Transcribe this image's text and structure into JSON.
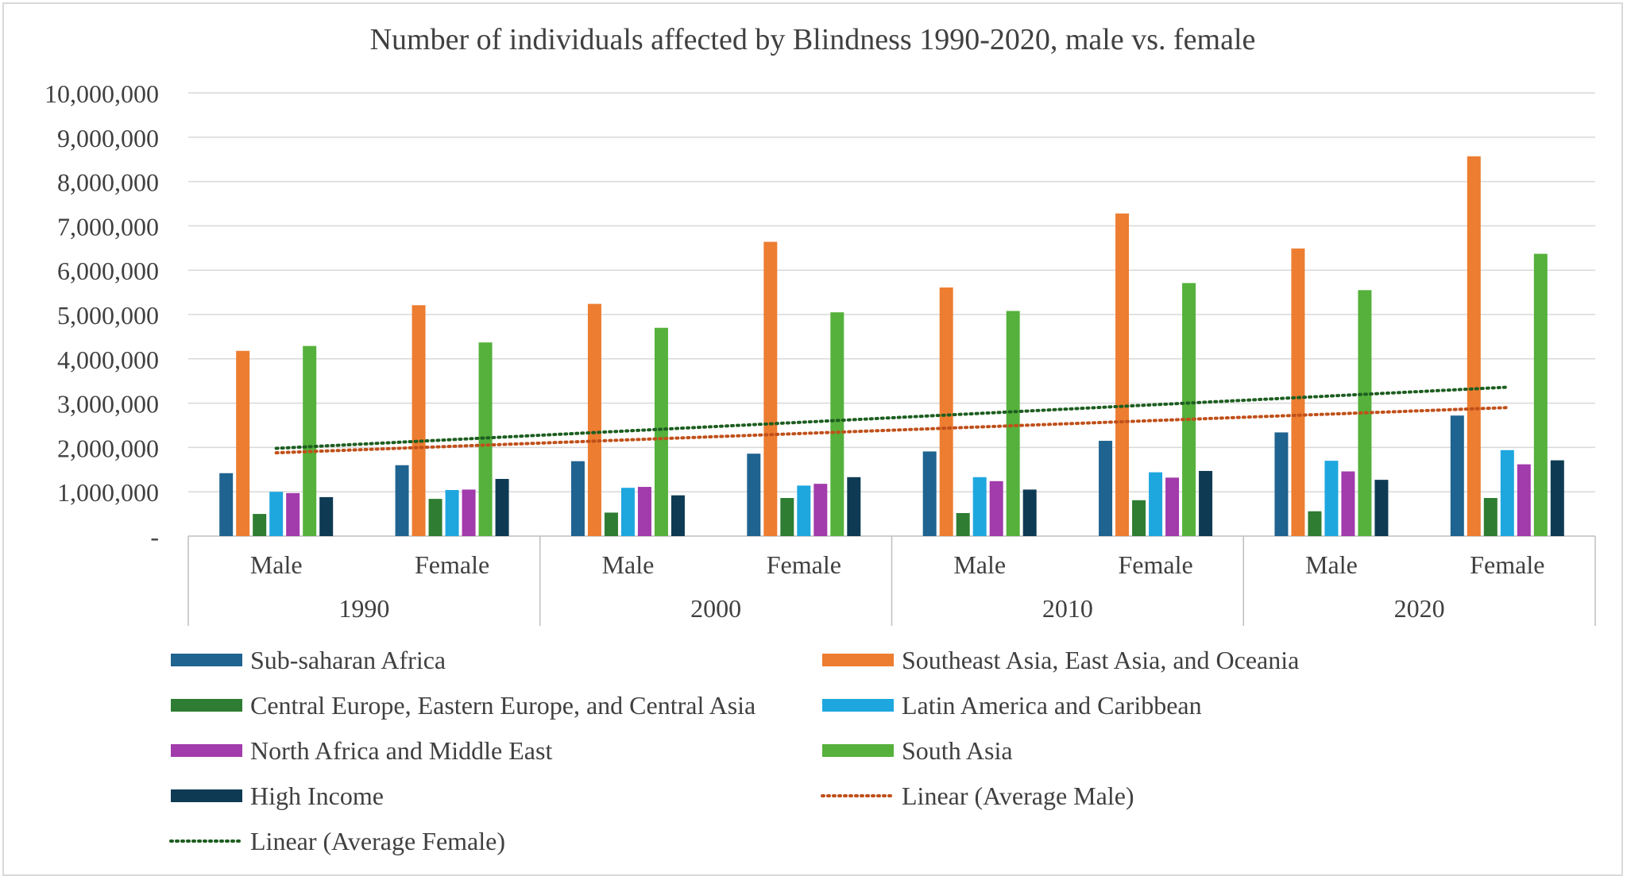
{
  "chart_data": {
    "type": "bar",
    "title": "Number of individuals affected by Blindness 1990-2020, male vs. female",
    "xlabel": "",
    "ylabel": "",
    "ylim": [
      0,
      10000000
    ],
    "y_ticks": [
      {
        "value": 0,
        "label": "-"
      },
      {
        "value": 1000000,
        "label": "1,000,000"
      },
      {
        "value": 2000000,
        "label": "2,000,000"
      },
      {
        "value": 3000000,
        "label": "3,000,000"
      },
      {
        "value": 4000000,
        "label": "4,000,000"
      },
      {
        "value": 5000000,
        "label": "5,000,000"
      },
      {
        "value": 6000000,
        "label": "6,000,000"
      },
      {
        "value": 7000000,
        "label": "7,000,000"
      },
      {
        "value": 8000000,
        "label": "8,000,000"
      },
      {
        "value": 9000000,
        "label": "9,000,000"
      },
      {
        "value": 10000000,
        "label": "10,000,000"
      }
    ],
    "grid": true,
    "legend_position": "bottom",
    "categories": [
      "Male",
      "Female",
      "Male",
      "Female",
      "Male",
      "Female",
      "Male",
      "Female"
    ],
    "groups": [
      "1990",
      "2000",
      "2010",
      "2020"
    ],
    "series": [
      {
        "name": "Sub-saharan Africa",
        "color": "#1f6390",
        "values": [
          1420000,
          1600000,
          1690000,
          1860000,
          1910000,
          2150000,
          2340000,
          2720000
        ]
      },
      {
        "name": "Southeast Asia, East Asia, and Oceania",
        "color": "#ed7d31",
        "values": [
          4180000,
          5210000,
          5240000,
          6640000,
          5610000,
          7280000,
          6490000,
          8570000
        ]
      },
      {
        "name": "Central Europe, Eastern Europe, and Central Asia",
        "color": "#2e7d32",
        "values": [
          500000,
          840000,
          530000,
          860000,
          520000,
          810000,
          560000,
          860000
        ]
      },
      {
        "name": "Latin America and Caribbean",
        "color": "#1ea7df",
        "values": [
          1000000,
          1040000,
          1090000,
          1140000,
          1330000,
          1440000,
          1700000,
          1940000
        ]
      },
      {
        "name": "North Africa and Middle East",
        "color": "#a23bab",
        "values": [
          970000,
          1050000,
          1110000,
          1180000,
          1240000,
          1320000,
          1460000,
          1620000
        ]
      },
      {
        "name": "South Asia",
        "color": "#55b13b",
        "values": [
          4290000,
          4370000,
          4700000,
          5050000,
          5080000,
          5710000,
          5550000,
          6370000
        ]
      },
      {
        "name": "High Income",
        "color": "#0e3b53",
        "values": [
          880000,
          1290000,
          920000,
          1330000,
          1050000,
          1470000,
          1270000,
          1710000
        ]
      }
    ],
    "trendlines": [
      {
        "name": "Linear (Average Male)",
        "color": "#c0501a",
        "style": "dotted",
        "start": 1880000,
        "end": 2900000
      },
      {
        "name": "Linear (Average Female)",
        "color": "#1d5e20",
        "style": "dotted",
        "start": 1980000,
        "end": 3360000
      }
    ]
  }
}
